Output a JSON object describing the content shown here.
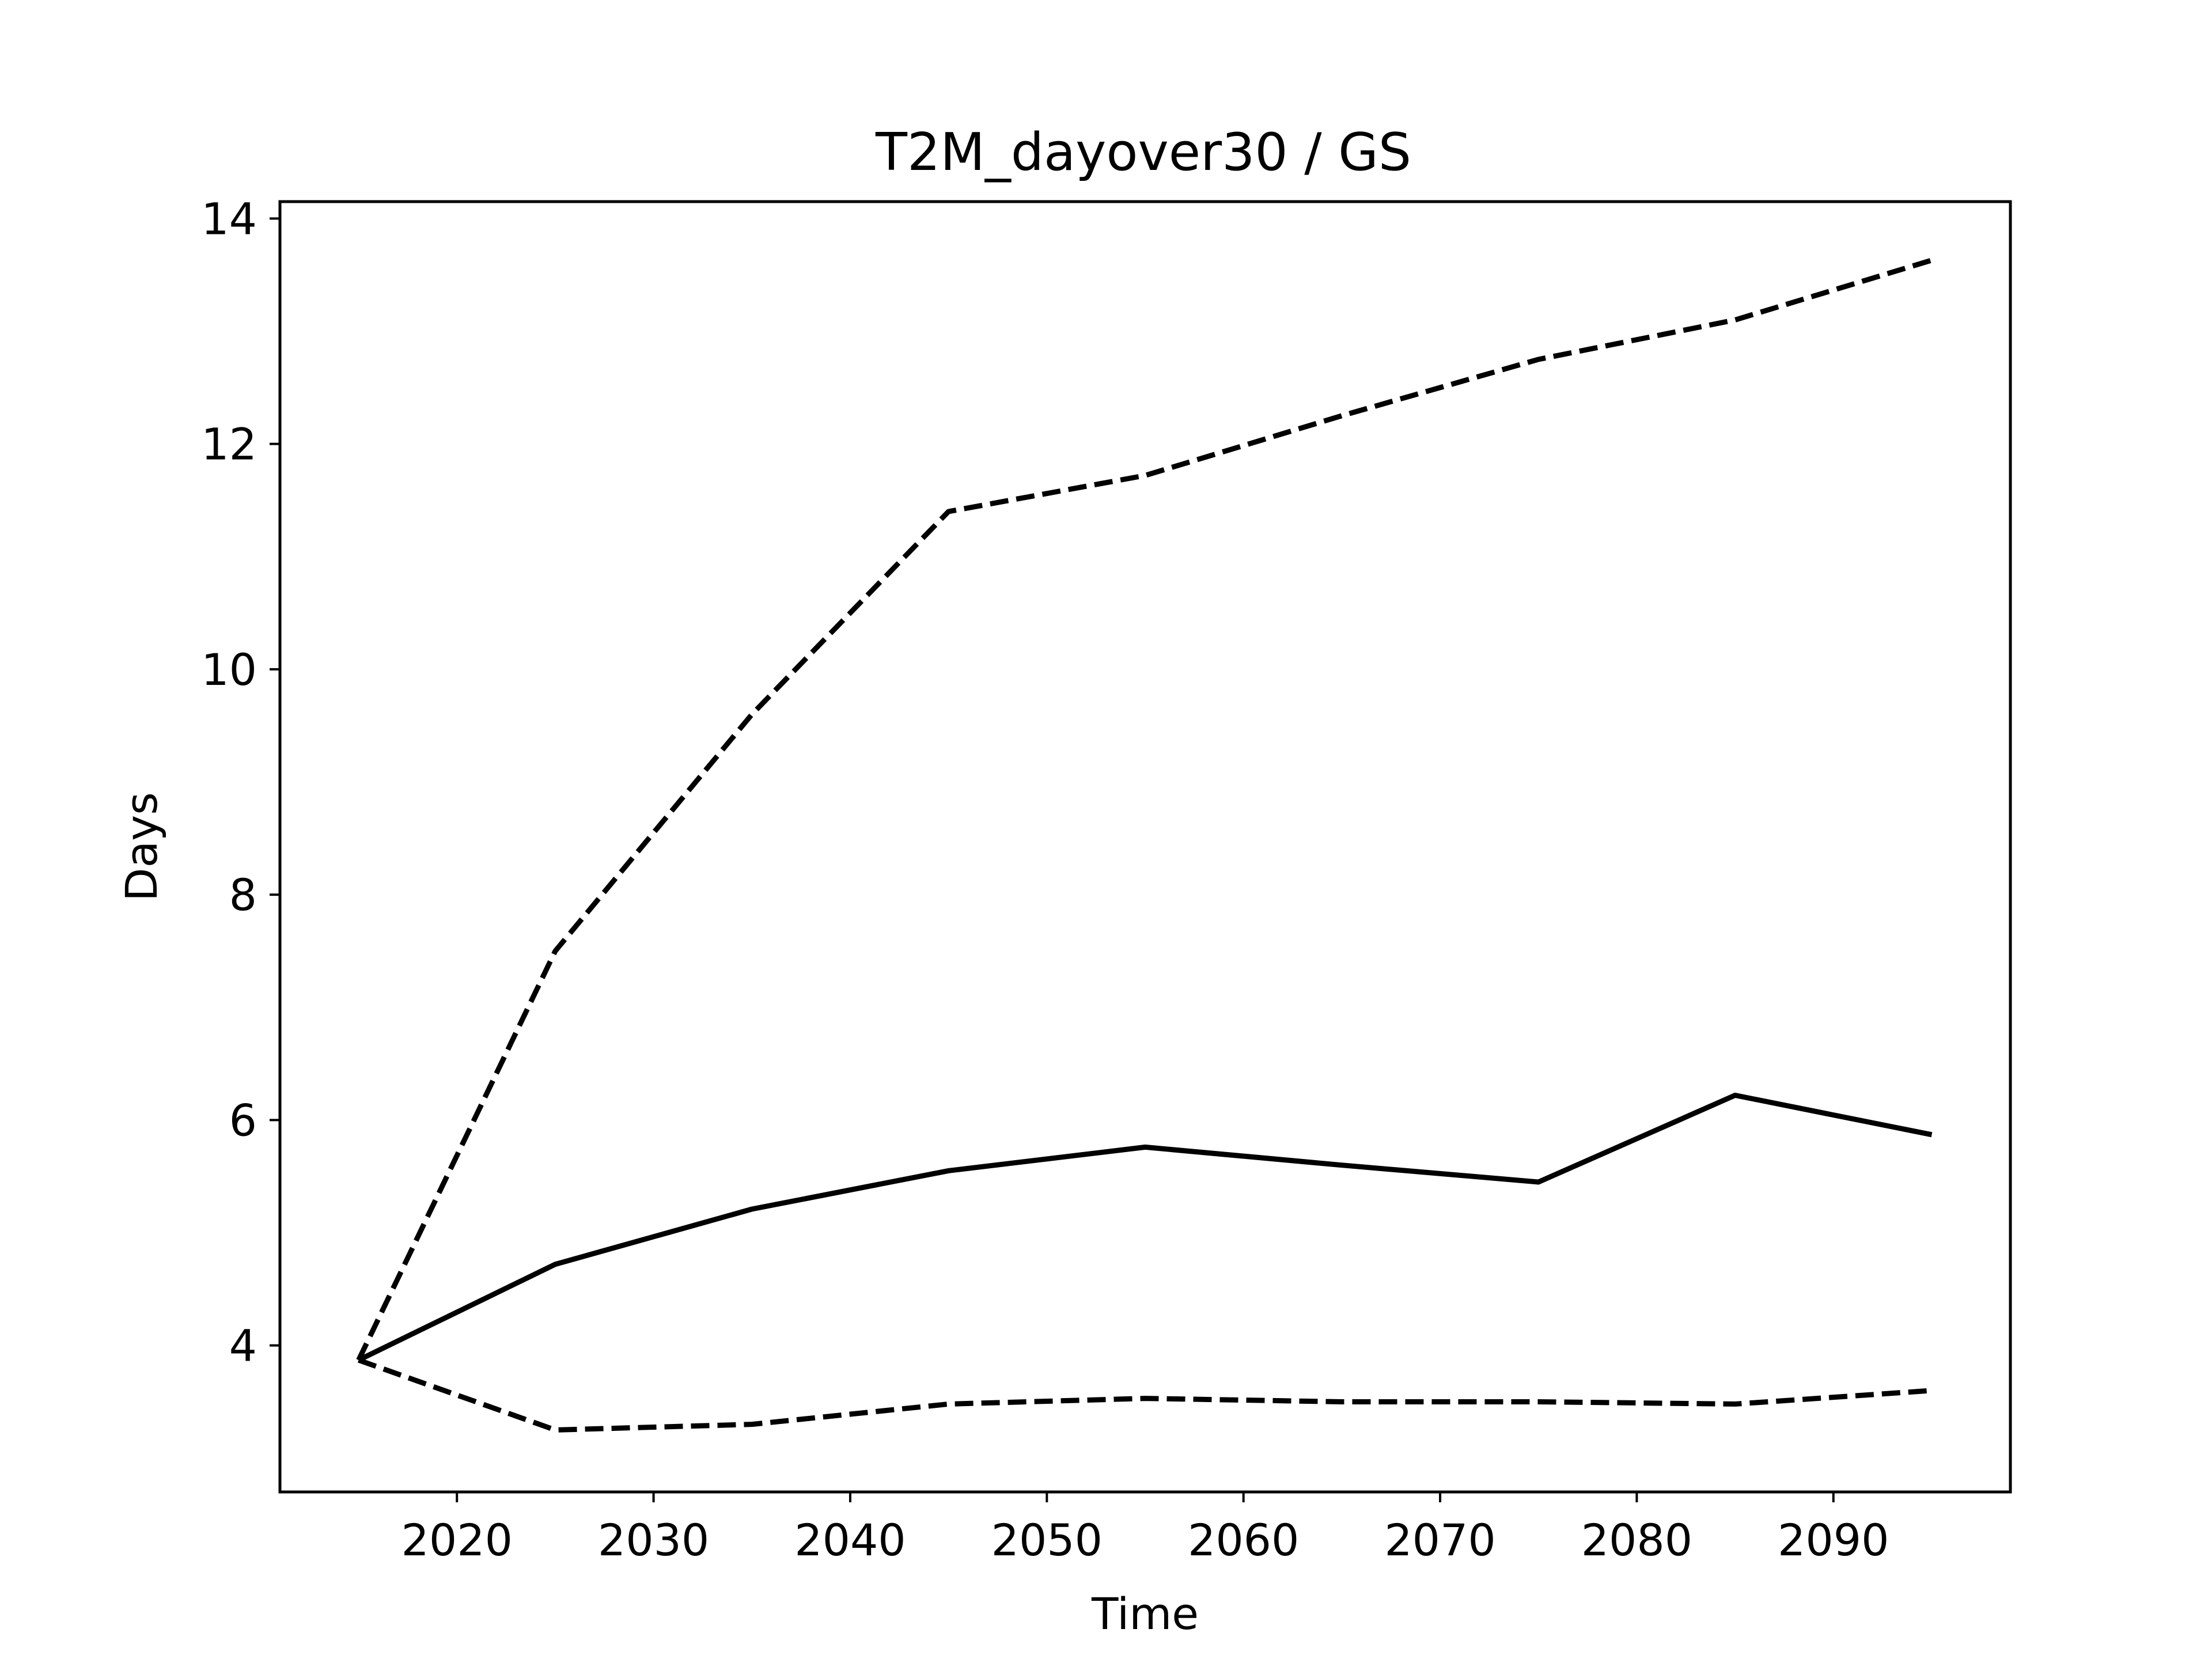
{
  "chart_data": {
    "type": "line",
    "title": "T2M_dayover30 / GS",
    "xlabel": "Time",
    "ylabel": "Days",
    "xlim": [
      2011,
      2099
    ],
    "ylim": [
      2.7,
      14.15
    ],
    "xticks": [
      2020,
      2030,
      2040,
      2050,
      2060,
      2070,
      2080,
      2090
    ],
    "yticks": [
      4,
      6,
      8,
      10,
      12,
      14
    ],
    "x": [
      2015,
      2025,
      2035,
      2045,
      2055,
      2065,
      2075,
      2085,
      2095
    ],
    "series": [
      {
        "style": "solid",
        "color": "#000000",
        "values": [
          3.87,
          4.72,
          5.21,
          5.55,
          5.76,
          5.6,
          5.45,
          6.22,
          5.87
        ]
      },
      {
        "style": "dashed",
        "color": "#000000",
        "values": [
          3.87,
          7.5,
          9.6,
          11.4,
          11.72,
          12.25,
          12.75,
          13.1,
          13.63
        ]
      },
      {
        "style": "dashed",
        "color": "#000000",
        "values": [
          3.87,
          3.25,
          3.3,
          3.48,
          3.53,
          3.5,
          3.5,
          3.48,
          3.6
        ]
      }
    ],
    "grid": false,
    "legend": "none"
  }
}
